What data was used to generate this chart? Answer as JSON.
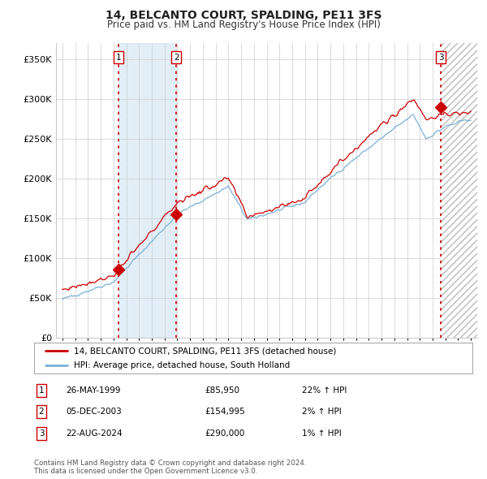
{
  "title": "14, BELCANTO COURT, SPALDING, PE11 3FS",
  "subtitle": "Price paid vs. HM Land Registry's House Price Index (HPI)",
  "ylim": [
    0,
    370000
  ],
  "yticks": [
    0,
    50000,
    100000,
    150000,
    200000,
    250000,
    300000,
    350000
  ],
  "ytick_labels": [
    "£0",
    "£50K",
    "£100K",
    "£150K",
    "£200K",
    "£250K",
    "£300K",
    "£350K"
  ],
  "xlim_start": 1994.5,
  "xlim_end": 2027.5,
  "xticks": [
    1995,
    1996,
    1997,
    1998,
    1999,
    2000,
    2001,
    2002,
    2003,
    2004,
    2005,
    2006,
    2007,
    2008,
    2009,
    2010,
    2011,
    2012,
    2013,
    2014,
    2015,
    2016,
    2017,
    2018,
    2019,
    2020,
    2021,
    2022,
    2023,
    2024,
    2025,
    2026,
    2027
  ],
  "sale_dates": [
    1999.4,
    2003.92,
    2024.64
  ],
  "sale_prices": [
    85950,
    154995,
    290000
  ],
  "sale_labels": [
    "1",
    "2",
    "3"
  ],
  "legend_line1": "14, BELCANTO COURT, SPALDING, PE11 3FS (detached house)",
  "legend_line2": "HPI: Average price, detached house, South Holland",
  "table_entries": [
    {
      "num": "1",
      "date": "26-MAY-1999",
      "price": "£85,950",
      "hpi": "22% ↑ HPI"
    },
    {
      "num": "2",
      "date": "05-DEC-2003",
      "price": "£154,995",
      "hpi": "2% ↑ HPI"
    },
    {
      "num": "3",
      "date": "22-AUG-2024",
      "price": "£290,000",
      "hpi": "1% ↑ HPI"
    }
  ],
  "copyright_text": "Contains HM Land Registry data © Crown copyright and database right 2024.\nThis data is licensed under the Open Government Licence v3.0.",
  "red_color": "#cc0000",
  "blue_color": "#7ab0d4",
  "light_blue_fill": "#d6e8f5",
  "hatch_color": "#bbbbbb",
  "grid_color": "#cccccc",
  "bg_color": "#ffffff"
}
